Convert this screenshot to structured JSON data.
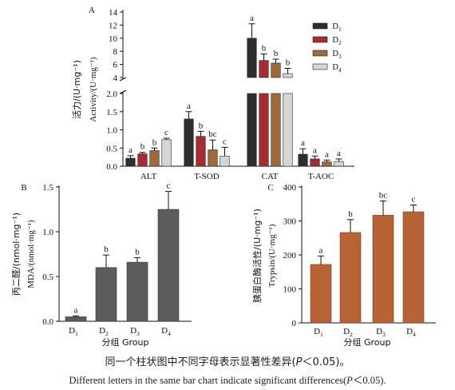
{
  "chart_data": [
    {
      "panel": "A",
      "type": "bar",
      "ylabel_zh": "活力/(U·mg⁻¹)",
      "ylabel_en": "Activity/(U·mg⁻¹)",
      "categories": [
        "ALT",
        "T-SOD",
        "CAT",
        "T-AOC"
      ],
      "axis_break": true,
      "ylim_lower": [
        0,
        2.0
      ],
      "ylim_upper": [
        4,
        14
      ],
      "yticks_lower": [
        "0.0",
        "0.5",
        "1.0",
        "1.5",
        "2.0"
      ],
      "yticks_upper": [
        "4",
        "6",
        "8",
        "10",
        "12",
        "14"
      ],
      "legend_position": "top-right",
      "series": [
        {
          "name": "D1",
          "color": "#2e2e2e",
          "values": [
            0.22,
            1.3,
            10.0,
            0.33
          ],
          "errors": [
            0.07,
            0.2,
            2.2,
            0.15
          ],
          "letters": [
            "a",
            "a",
            "a",
            "a"
          ]
        },
        {
          "name": "D2",
          "color": "#a62b33",
          "values": [
            0.34,
            0.82,
            6.6,
            0.2
          ],
          "errors": [
            0.04,
            0.14,
            1.0,
            0.08
          ],
          "letters": [
            "b",
            "b",
            "b",
            "a"
          ]
        },
        {
          "name": "D3",
          "color": "#9e6a3a",
          "values": [
            0.43,
            0.45,
            6.2,
            0.12
          ],
          "errors": [
            0.07,
            0.27,
            0.6,
            0.05
          ],
          "letters": [
            "b",
            "bc",
            "b",
            "a"
          ]
        },
        {
          "name": "D4",
          "color": "#d6d6d6",
          "values": [
            0.73,
            0.28,
            4.6,
            0.13
          ],
          "errors": [
            0.04,
            0.24,
            0.8,
            0.07
          ],
          "letters": [
            "c",
            "c",
            "b",
            "a"
          ]
        }
      ]
    },
    {
      "panel": "B",
      "type": "bar",
      "ylabel_zh": "丙二醛/(nmol·mg⁻¹)",
      "ylabel_en": "MDA/(nmol·mg⁻¹)",
      "xlabel": "分组 Group",
      "categories": [
        "D1",
        "D2",
        "D3",
        "D4"
      ],
      "values": [
        0.05,
        0.6,
        0.66,
        1.25
      ],
      "errors": [
        0.01,
        0.14,
        0.05,
        0.2
      ],
      "letters": [
        "a",
        "b",
        "b",
        "c"
      ],
      "ylim": [
        0,
        1.5
      ],
      "yticks": [
        "0.0",
        "0.5",
        "1.0",
        "1.5"
      ],
      "color": "#5c5c5c"
    },
    {
      "panel": "C",
      "type": "bar",
      "ylabel_zh": "胰蛋白酶活性/(U·mg⁻¹)",
      "ylabel_en": "Trypsin/(U·mg⁻¹)",
      "xlabel": "分组 Group",
      "categories": [
        "D1",
        "D2",
        "D3",
        "D4"
      ],
      "values": [
        172,
        266,
        317,
        327
      ],
      "errors": [
        25,
        38,
        42,
        20
      ],
      "letters": [
        "a",
        "b",
        "bc",
        "c"
      ],
      "ylim": [
        0,
        400
      ],
      "yticks": [
        "0",
        "100",
        "200",
        "300",
        "400"
      ],
      "color": "#b76336"
    }
  ],
  "caption": {
    "zh_pre": "同一个柱状图中不同字母表示显著性差异(",
    "zh_p": "P",
    "zh_post": "＜0.05)。",
    "en_pre": "Different letters in the same bar chart indicate significant differences(",
    "en_p": "P",
    "en_post": "＜0.05)."
  }
}
